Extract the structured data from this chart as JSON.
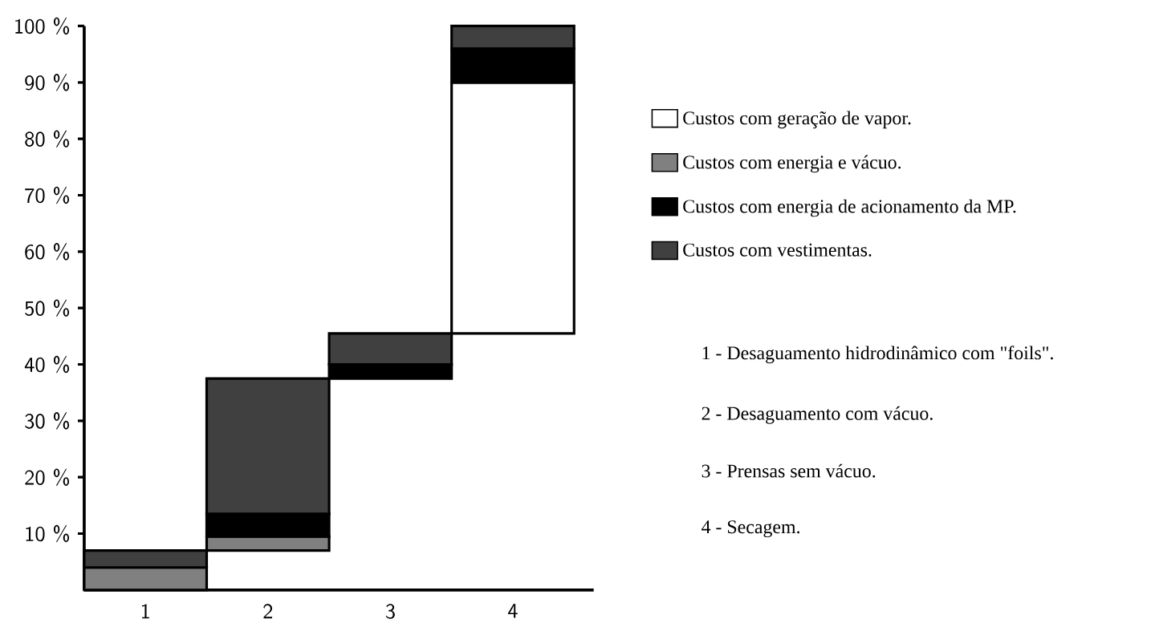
{
  "chart_data": {
    "type": "bar",
    "categories": [
      "1",
      "2",
      "3",
      "4"
    ],
    "series": [
      {
        "name": "Custos com geração de vapor.",
        "color": "#ffffff",
        "base": [
          null,
          null,
          null,
          45.5
        ],
        "values": [
          null,
          null,
          null,
          44.5
        ]
      },
      {
        "name": "Custos com energia e vácuo.",
        "color": "#808080",
        "base": [
          0,
          7,
          null,
          null
        ],
        "values": [
          4,
          2.5,
          null,
          null
        ]
      },
      {
        "name": "Custos com energia de acionamento da MP.",
        "color": "#000000",
        "base": [
          null,
          9.5,
          37.5,
          90
        ],
        "values": [
          null,
          4,
          2.5,
          6
        ]
      },
      {
        "name": "Custos com vestimentas.",
        "color": "#404040",
        "base": [
          4,
          13.5,
          40,
          96
        ],
        "values": [
          3,
          24,
          5.5,
          4
        ]
      }
    ],
    "ylim": [
      0,
      100
    ],
    "yticks": [
      {
        "value": 10,
        "label": "10 %"
      },
      {
        "value": 20,
        "label": "20 %"
      },
      {
        "value": 30,
        "label": "30 %"
      },
      {
        "value": 40,
        "label": "40 %"
      },
      {
        "value": 50,
        "label": "50 %"
      },
      {
        "value": 60,
        "label": "60 %"
      },
      {
        "value": 70,
        "label": "70 %"
      },
      {
        "value": 80,
        "label": "80 %"
      },
      {
        "value": 90,
        "label": "90 %"
      },
      {
        "value": 100,
        "label": "100 %"
      }
    ],
    "legend": "right",
    "annotations": [
      "1 - Desaguamento hidrodinâmico com \"foils\".",
      "2 - Desaguamento com vácuo.",
      "3 - Prensas sem vácuo.",
      "4 - Secagem."
    ]
  }
}
